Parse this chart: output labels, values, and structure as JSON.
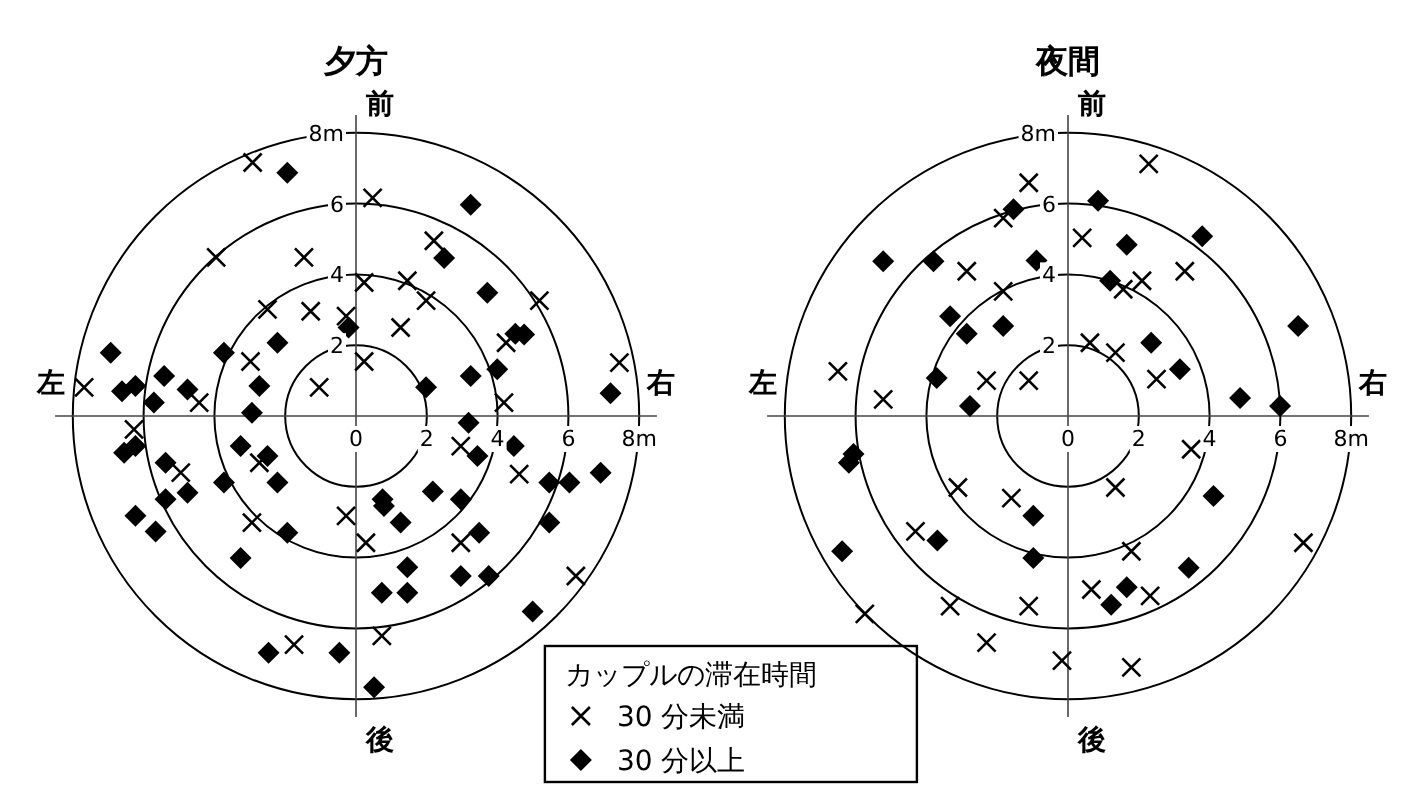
{
  "chart_data": [
    {
      "type": "scatter",
      "title": "夕方",
      "xlim": [
        -8.5,
        8.5
      ],
      "ylim": [
        -8.5,
        8.5
      ],
      "xticks": [
        0,
        2,
        4,
        6,
        {
          "value": 8,
          "label": "8m"
        }
      ],
      "yticks": [
        2,
        4,
        6,
        {
          "value": 8,
          "label": "8m"
        }
      ],
      "legend": "bottom right",
      "legend_title": "カップルの滞在時間",
      "annotations": [
        "前",
        "後",
        "左",
        "右"
      ],
      "series": [
        {
          "name": "30 分未満",
          "color": "#000000",
          "marker": "cross",
          "x": [
            -2.92,
            0.47,
            -3.95,
            -1.47,
            2.2,
            0.23,
            1.45,
            1.98,
            -2.5,
            -1.28,
            -0.28,
            1.26,
            5.18,
            4.24,
            0.23,
            -2.98,
            7.44,
            -7.68,
            -1.04,
            -4.43,
            4.18,
            -6.27,
            2.96,
            -2.73,
            -4.95,
            4.61,
            -0.28,
            0.28,
            -2.94,
            2.96,
            6.21,
            -1.75,
            0.73
          ],
          "values": [
            7.16,
            6.16,
            4.48,
            4.48,
            4.95,
            3.77,
            3.82,
            3.26,
            3.01,
            2.96,
            2.82,
            2.5,
            3.26,
            2.07,
            1.54,
            1.54,
            1.51,
            0.81,
            0.81,
            0.38,
            0.38,
            -0.38,
            -0.85,
            -1.32,
            -1.6,
            -1.64,
            -2.82,
            -3.58,
            -3.01,
            -3.58,
            -4.52,
            -6.46,
            -6.21
          ]
        },
        {
          "name": "30 分以上",
          "color": "#000000",
          "marker": "diamond",
          "x": [
            -1.94,
            3.24,
            2.49,
            3.71,
            -0.21,
            4.5,
            4.75,
            -2.22,
            -3.73,
            -6.93,
            -5.42,
            3.24,
            3.99,
            -2.73,
            1.98,
            7.19,
            -6.61,
            -6.23,
            -5.71,
            -4.76,
            -2.94,
            3.18,
            4.46,
            -6.55,
            -6.23,
            -3.26,
            -2.5,
            3.43,
            -5.38,
            -2.22,
            -3.73,
            -4.76,
            -5.38,
            5.46,
            6.03,
            6.91,
            0.75,
            0.79,
            1.26,
            2.17,
            2.96,
            -6.23,
            -5.66,
            -1.94,
            3.48,
            5.46,
            -3.26,
            1.45,
            0.73,
            1.45,
            2.96,
            3.75,
            4.99,
            -2.47,
            -0.47,
            0.51
          ],
          "values": [
            6.87,
            5.97,
            4.46,
            3.48,
            2.5,
            2.32,
            2.3,
            2.07,
            1.79,
            1.79,
            1.13,
            1.13,
            1.32,
            0.85,
            0.81,
            0.64,
            0.7,
            0.85,
            0.38,
            0.75,
            0.09,
            -0.19,
            -0.85,
            -1.04,
            -0.85,
            -0.85,
            -1.13,
            -1.13,
            -1.32,
            -1.88,
            -1.88,
            -2.17,
            -2.35,
            -1.88,
            -1.88,
            -1.6,
            -2.35,
            -2.54,
            -3.01,
            -2.13,
            -2.35,
            -2.82,
            -3.26,
            -3.3,
            -3.3,
            -3.01,
            -4.01,
            -4.27,
            -4.99,
            -4.99,
            -4.52,
            -4.52,
            -5.52,
            -6.69,
            -6.69,
            -7.66
          ]
        }
      ]
    },
    {
      "type": "scatter",
      "title": "夜間",
      "xlim": [
        -8.5,
        8.5
      ],
      "ylim": [
        -8.5,
        8.5
      ],
      "xticks": [
        0,
        2,
        4,
        6,
        {
          "value": 8,
          "label": "8m"
        }
      ],
      "yticks": [
        2,
        4,
        6,
        {
          "value": 8,
          "label": "8m"
        }
      ],
      "annotations": [
        "前",
        "後",
        "左",
        "右"
      ],
      "series": [
        {
          "color": "#000000",
          "marker": "cross",
          "x": [
            2.28,
            -1.11,
            -1.83,
            0.4,
            -2.86,
            -1.83,
            2.09,
            1.56,
            3.3,
            0.62,
            1.34,
            -6.5,
            -2.3,
            -1.11,
            2.5,
            -5.22,
            3.48,
            -3.11,
            1.34,
            -1.6,
            -4.31,
            1.79,
            0.66,
            2.32,
            6.65,
            -3.33,
            -1.11,
            -5.74,
            -2.3,
            -0.17,
            1.79
          ],
          "values": [
            7.12,
            6.59,
            5.59,
            5.03,
            4.09,
            3.52,
            3.82,
            3.58,
            4.09,
            2.07,
            1.79,
            1.26,
            1.0,
            1.0,
            1.04,
            0.47,
            -0.94,
            -2.02,
            -2.02,
            -2.32,
            -3.26,
            -3.82,
            -4.9,
            -5.08,
            -3.58,
            -5.37,
            -5.37,
            -5.59,
            -6.4,
            -6.91,
            -7.1
          ]
        },
        {
          "color": "#000000",
          "marker": "diamond",
          "x": [
            -1.54,
            0.85,
            1.66,
            3.79,
            -5.22,
            -3.8,
            -0.89,
            1.19,
            -3.33,
            -2.86,
            -1.83,
            2.35,
            6.5,
            3.16,
            -3.71,
            -2.77,
            4.86,
            5.99,
            -6.06,
            -6.19,
            -0.98,
            4.11,
            -3.69,
            -6.38,
            -0.98,
            3.41,
            1.66,
            1.22
          ],
          "values": [
            5.84,
            6.08,
            4.84,
            5.08,
            4.37,
            4.37,
            4.39,
            3.82,
            2.82,
            2.32,
            2.54,
            2.07,
            2.54,
            1.32,
            1.07,
            0.28,
            0.51,
            0.28,
            -1.07,
            -1.32,
            -2.82,
            -2.26,
            -3.52,
            -3.82,
            -4.01,
            -4.29,
            -4.84,
            -5.33
          ]
        }
      ]
    }
  ]
}
